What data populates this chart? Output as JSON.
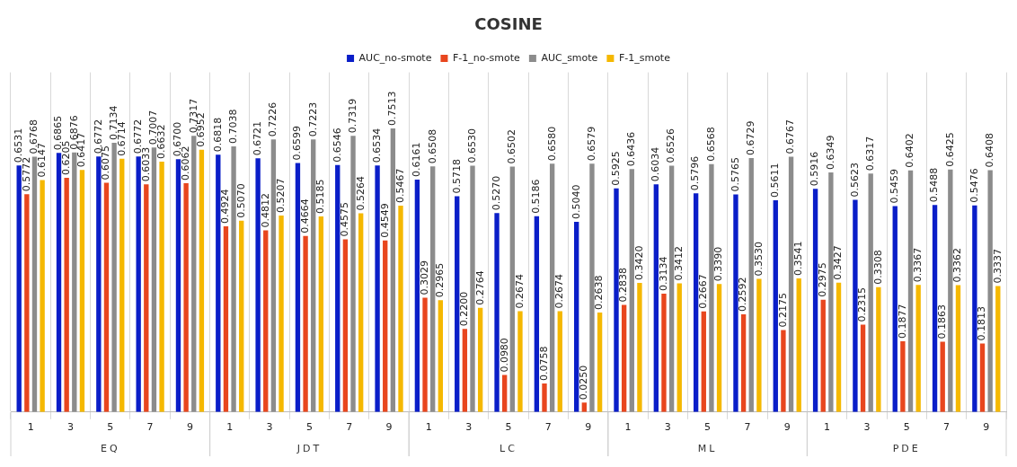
{
  "chart_data": {
    "type": "bar",
    "title": "COSINE",
    "categories": [
      "1",
      "3",
      "5",
      "7",
      "9",
      "1",
      "3",
      "5",
      "7",
      "9",
      "1",
      "3",
      "5",
      "7",
      "9",
      "1",
      "3",
      "5",
      "7",
      "9",
      "1",
      "3",
      "5",
      "7",
      "9"
    ],
    "annotations": [
      "EQ",
      "JDT",
      "LC",
      "ML",
      "PDE"
    ],
    "series": [
      {
        "name": "AUC_no-smote",
        "color": "#0a1ec8",
        "values": [
          0.6531,
          0.6865,
          0.6772,
          0.6772,
          0.67,
          0.6818,
          0.6721,
          0.6599,
          0.6546,
          0.6534,
          0.6161,
          0.5718,
          0.527,
          0.5186,
          0.504,
          0.5925,
          0.6034,
          0.5796,
          0.5765,
          0.5611,
          0.5916,
          0.5623,
          0.5459,
          0.5488,
          0.5476
        ],
        "value_labels": [
          "0.6531",
          "0.6865",
          "0.6772",
          "0.6772",
          "0.6700",
          "0.6818",
          "0.6721",
          "0.6599",
          "0.6546",
          "0.6534",
          "0.6161",
          "0.5718",
          "0.5270",
          "0.5186",
          "0.5040",
          "0.5925",
          "0.6034",
          "0.5796",
          "0.5765",
          "0.5611",
          "0.5916",
          "0.5623",
          "0.5459",
          "0.5488",
          "0.5476"
        ]
      },
      {
        "name": "F-1_no-smote",
        "color": "#e8461e",
        "values": [
          0.5772,
          0.6205,
          0.6075,
          0.6033,
          0.6062,
          0.4924,
          0.4812,
          0.4664,
          0.4575,
          0.4549,
          0.3029,
          0.22,
          0.098,
          0.0758,
          0.025,
          0.2838,
          0.3134,
          0.2667,
          0.2592,
          0.2175,
          0.2975,
          0.2315,
          0.1877,
          0.1863,
          0.1813
        ],
        "value_labels": [
          "0.5772",
          "0.6205",
          "0.6075",
          "0.6033",
          "0.6062",
          "0.4924",
          "0.4812",
          "0.4664",
          "0.4575",
          "0.4549",
          "0.3029",
          "0.2200",
          "0.0980",
          "0.0758",
          "0.0250",
          "0.2838",
          "0.3134",
          "0.2667",
          "0.2592",
          "0.2175",
          "0.2975",
          "0.2315",
          "0.1877",
          "0.1863",
          "0.1813"
        ]
      },
      {
        "name": "AUC_smote",
        "color": "#8c8c8c",
        "values": [
          0.6768,
          0.6876,
          0.7134,
          0.7007,
          0.7317,
          0.7038,
          0.7226,
          0.7223,
          0.7319,
          0.7513,
          0.6508,
          0.653,
          0.6502,
          0.658,
          0.6579,
          0.6436,
          0.6526,
          0.6568,
          0.6729,
          0.6767,
          0.6349,
          0.6317,
          0.6402,
          0.6425,
          0.6408
        ],
        "value_labels": [
          "0.6768",
          "0.6876",
          "0.7134",
          "0.7007",
          "0.7317",
          "0.7038",
          "0.7226",
          "0.7223",
          "0.7319",
          "0.7513",
          "0.6508",
          "0.6530",
          "0.6502",
          "0.6580",
          "0.6579",
          "0.6436",
          "0.6526",
          "0.6568",
          "0.6729",
          "0.6767",
          "0.6349",
          "0.6317",
          "0.6402",
          "0.6425",
          "0.6408"
        ]
      },
      {
        "name": "F-1_smote",
        "color": "#f5b800",
        "values": [
          0.6147,
          0.6417,
          0.6714,
          0.6632,
          0.6952,
          0.507,
          0.5207,
          0.5185,
          0.5264,
          0.5467,
          0.2965,
          0.2764,
          0.2674,
          0.2674,
          0.2638,
          0.342,
          0.3412,
          0.339,
          0.353,
          0.3541,
          0.3427,
          0.3308,
          0.3367,
          0.3362,
          0.3337
        ],
        "value_labels": [
          "0.6147",
          "0.6417",
          "0.6714",
          "0.6632",
          "0.6952",
          "0.5070",
          "0.5207",
          "0.5185",
          "0.5264",
          "0.5467",
          "0.2965",
          "0.2764",
          "0.2674",
          "0.2674",
          "0.2638",
          "0.3420",
          "0.3412",
          "0.3390",
          "0.3530",
          "0.3541",
          "0.3427",
          "0.3308",
          "0.3367",
          "0.3362",
          "0.3337"
        ]
      }
    ],
    "grid": "x",
    "legend": "top"
  }
}
